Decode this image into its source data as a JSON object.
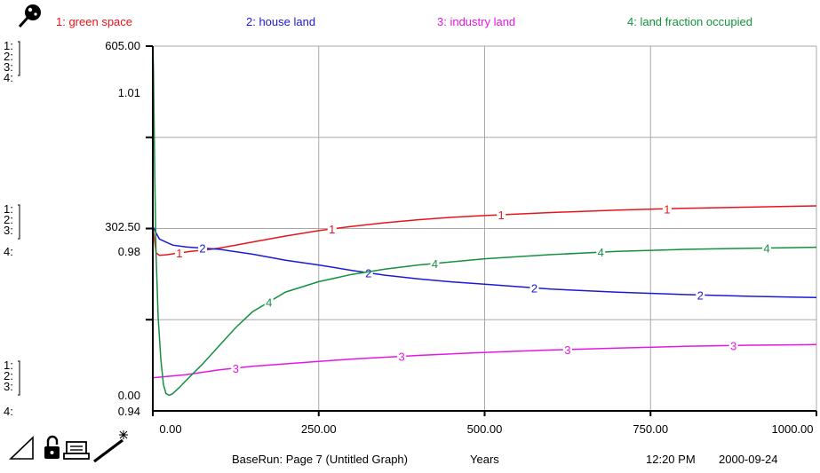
{
  "legend": [
    {
      "id": 1,
      "label": "1: green space",
      "color": "#e8141c"
    },
    {
      "id": 2,
      "label": "2: house land",
      "color": "#1a1ad6"
    },
    {
      "id": 3,
      "label": "3: industry land",
      "color": "#e617e6"
    },
    {
      "id": 4,
      "label": "4: land fraction occupied",
      "color": "#14913c"
    }
  ],
  "left_axis_groups": [
    {
      "keys": [
        "1:",
        "2:",
        "3:",
        "4:"
      ],
      "values": [
        "605.00",
        "1.01"
      ]
    },
    {
      "keys": [
        "1:",
        "2:",
        "3:",
        "4:"
      ],
      "values": [
        "302.50",
        "0.98"
      ]
    },
    {
      "keys": [
        "1:",
        "2:",
        "3:",
        "4:"
      ],
      "values": [
        "0.00",
        "0.94"
      ]
    }
  ],
  "footer": {
    "run_label": "BaseRun: Page 7 (Untitled Graph)",
    "units_label": "Years",
    "time": "12:20 PM",
    "date": "2000-09-24"
  },
  "icons": {
    "top_left": "pin-icon",
    "bottom": [
      "graph-pad-icon",
      "lock-icon",
      "print-icon",
      "magic-wand-icon"
    ]
  },
  "chart_data": {
    "type": "line",
    "title": "",
    "xlabel": "Years",
    "xlim": [
      0,
      1000
    ],
    "x_ticks": [
      "0.00",
      "250.00",
      "500.00",
      "750.00",
      "1000.00"
    ],
    "grid": true,
    "legend_position": "top",
    "series": [
      {
        "name": "1: green space",
        "marker": "1",
        "color": "#e8141c",
        "ylim": [
          0,
          605
        ],
        "x": [
          0,
          1,
          5,
          10,
          20,
          40,
          60,
          80,
          100,
          125,
          150,
          175,
          200,
          250,
          300,
          350,
          400,
          450,
          500,
          600,
          700,
          800,
          900,
          1000
        ],
        "y": [
          302,
          298,
          262,
          258,
          259,
          262,
          265,
          267,
          270,
          275,
          280,
          285,
          290,
          299,
          306,
          312,
          317,
          321,
          324,
          329,
          333,
          336,
          338,
          340
        ],
        "marker_x": [
          40,
          270,
          525,
          775
        ]
      },
      {
        "name": "2: house land",
        "marker": "2",
        "color": "#1a1ad6",
        "ylim": [
          0,
          605
        ],
        "x": [
          0,
          2,
          5,
          10,
          20,
          30,
          50,
          75,
          100,
          150,
          200,
          250,
          300,
          350,
          400,
          450,
          500,
          600,
          700,
          800,
          900,
          1000
        ],
        "y": [
          305,
          302,
          295,
          285,
          280,
          275,
          272,
          270,
          268,
          260,
          250,
          242,
          233,
          225,
          219,
          214,
          210,
          202,
          197,
          193,
          190,
          188
        ],
        "marker_x": [
          75,
          325,
          575,
          825
        ]
      },
      {
        "name": "3: industry land",
        "marker": "3",
        "color": "#e617e6",
        "ylim": [
          0,
          605
        ],
        "x": [
          0,
          10,
          50,
          100,
          150,
          200,
          250,
          300,
          400,
          500,
          600,
          700,
          800,
          900,
          1000
        ],
        "y": [
          55,
          56,
          60,
          68,
          74,
          78,
          82,
          86,
          92,
          97,
          101,
          104,
          107,
          109,
          110
        ],
        "marker_x": [
          125,
          375,
          625,
          875
        ]
      },
      {
        "name": "4: land fraction occupied",
        "marker": "4",
        "color": "#14913c",
        "ylim": [
          0.94,
          1.01
        ],
        "x": [
          0,
          1,
          2,
          3,
          5,
          8,
          12,
          16,
          20,
          25,
          30,
          40,
          50,
          75,
          100,
          125,
          150,
          200,
          250,
          300,
          350,
          400,
          500,
          600,
          700,
          800,
          900,
          1000
        ],
        "y": [
          1.01,
          1.006,
          0.995,
          0.985,
          0.97,
          0.958,
          0.95,
          0.945,
          0.9433,
          0.943,
          0.9433,
          0.9445,
          0.9458,
          0.949,
          0.9525,
          0.956,
          0.959,
          0.9628,
          0.9648,
          0.9662,
          0.9672,
          0.968,
          0.9692,
          0.97,
          0.9706,
          0.971,
          0.9712,
          0.9714
        ],
        "marker_x": [
          175,
          425,
          675,
          925
        ]
      }
    ]
  }
}
